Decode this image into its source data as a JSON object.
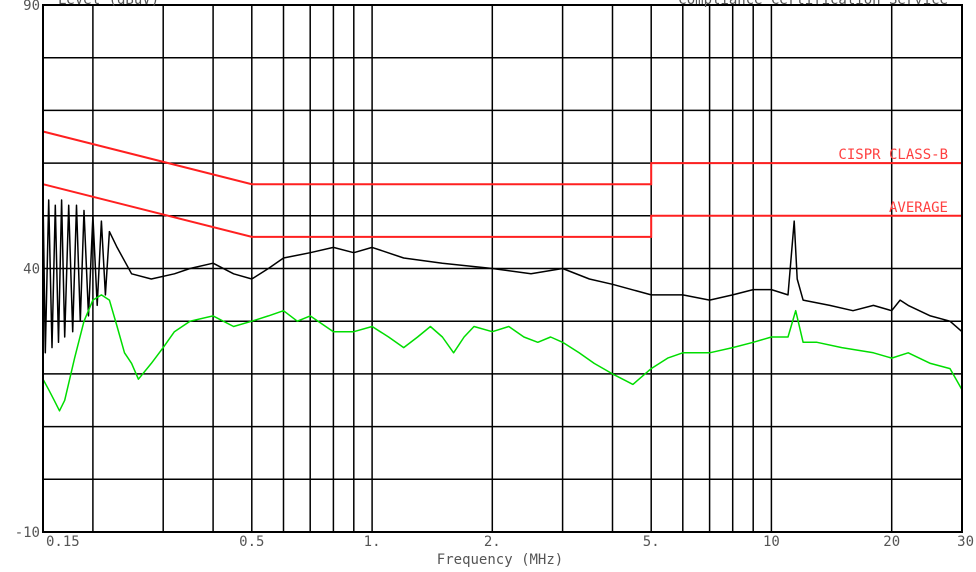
{
  "header": {
    "left_text": "Level (dBuV)",
    "right_text": "Compliance Certification Service"
  },
  "chart_data": {
    "type": "line",
    "title": "",
    "xlabel": "Frequency (MHz)",
    "ylabel": "Level (dBuV)",
    "x_scale": "log",
    "xlim": [
      0.15,
      30
    ],
    "ylim": [
      -10,
      90
    ],
    "grid": true,
    "x_ticks": [
      {
        "value": 0.15,
        "label": "0.15"
      },
      {
        "value": 0.5,
        "label": "0.5"
      },
      {
        "value": 1,
        "label": "1."
      },
      {
        "value": 2,
        "label": "2."
      },
      {
        "value": 5,
        "label": "5."
      },
      {
        "value": 10,
        "label": "10"
      },
      {
        "value": 20,
        "label": "20"
      },
      {
        "value": 30,
        "label": "30"
      }
    ],
    "y_ticks": [
      {
        "value": 90,
        "label": "90"
      },
      {
        "value": 40,
        "label": "40"
      },
      {
        "value": -10,
        "label": "-10"
      }
    ],
    "x_gridlines": [
      0.2,
      0.3,
      0.4,
      0.5,
      0.6,
      0.7,
      0.8,
      0.9,
      1,
      2,
      3,
      4,
      5,
      6,
      7,
      8,
      9,
      10,
      20
    ],
    "y_gridlines": [
      80,
      70,
      60,
      50,
      40,
      30,
      20,
      10,
      0
    ],
    "colors": {
      "limit": "#ff2020",
      "peak": "#000000",
      "average": "#00dd00",
      "grid": "#000000",
      "text": "#555555"
    },
    "limits": [
      {
        "name": "CISPR CLASS-B",
        "points": [
          [
            0.15,
            66
          ],
          [
            0.5,
            56
          ],
          [
            5,
            56
          ],
          [
            5,
            60
          ],
          [
            30,
            60
          ]
        ]
      },
      {
        "name": "AVERAGE",
        "points": [
          [
            0.15,
            56
          ],
          [
            0.5,
            46
          ],
          [
            5,
            46
          ],
          [
            5,
            50
          ],
          [
            30,
            50
          ]
        ]
      }
    ],
    "series": [
      {
        "points": [
          [
            0.15,
            54
          ],
          [
            0.152,
            24
          ],
          [
            0.155,
            53
          ],
          [
            0.158,
            25
          ],
          [
            0.161,
            52
          ],
          [
            0.164,
            26
          ],
          [
            0.167,
            53
          ],
          [
            0.17,
            27
          ],
          [
            0.174,
            52
          ],
          [
            0.178,
            28
          ],
          [
            0.182,
            52
          ],
          [
            0.186,
            30
          ],
          [
            0.19,
            51
          ],
          [
            0.195,
            31
          ],
          [
            0.2,
            50
          ],
          [
            0.205,
            33
          ],
          [
            0.21,
            49
          ],
          [
            0.215,
            35
          ],
          [
            0.22,
            47
          ],
          [
            0.23,
            44
          ],
          [
            0.25,
            39
          ],
          [
            0.28,
            38
          ],
          [
            0.32,
            39
          ],
          [
            0.35,
            40
          ],
          [
            0.4,
            41
          ],
          [
            0.45,
            39
          ],
          [
            0.5,
            38
          ],
          [
            0.55,
            40
          ],
          [
            0.6,
            42
          ],
          [
            0.7,
            43
          ],
          [
            0.8,
            44
          ],
          [
            0.9,
            43
          ],
          [
            1,
            44
          ],
          [
            1.2,
            42
          ],
          [
            1.5,
            41
          ],
          [
            2,
            40
          ],
          [
            2.5,
            39
          ],
          [
            3,
            40
          ],
          [
            3.5,
            38
          ],
          [
            4,
            37
          ],
          [
            5,
            35
          ],
          [
            6,
            35
          ],
          [
            7,
            34
          ],
          [
            8,
            35
          ],
          [
            9,
            36
          ],
          [
            10,
            36
          ],
          [
            11,
            35
          ],
          [
            11.4,
            49
          ],
          [
            11.6,
            38
          ],
          [
            12,
            34
          ],
          [
            14,
            33
          ],
          [
            16,
            32
          ],
          [
            18,
            33
          ],
          [
            20,
            32
          ],
          [
            21,
            34
          ],
          [
            22,
            33
          ],
          [
            25,
            31
          ],
          [
            28,
            30
          ],
          [
            30,
            28
          ]
        ]
      },
      {
        "points": [
          [
            0.15,
            19
          ],
          [
            0.155,
            17
          ],
          [
            0.16,
            15
          ],
          [
            0.165,
            13
          ],
          [
            0.17,
            15
          ],
          [
            0.18,
            23
          ],
          [
            0.19,
            30
          ],
          [
            0.2,
            34
          ],
          [
            0.21,
            35
          ],
          [
            0.22,
            34
          ],
          [
            0.23,
            29
          ],
          [
            0.24,
            24
          ],
          [
            0.25,
            22
          ],
          [
            0.26,
            19
          ],
          [
            0.28,
            22
          ],
          [
            0.3,
            25
          ],
          [
            0.32,
            28
          ],
          [
            0.35,
            30
          ],
          [
            0.4,
            31
          ],
          [
            0.45,
            29
          ],
          [
            0.5,
            30
          ],
          [
            0.55,
            31
          ],
          [
            0.6,
            32
          ],
          [
            0.65,
            30
          ],
          [
            0.7,
            31
          ],
          [
            0.8,
            28
          ],
          [
            0.9,
            28
          ],
          [
            1,
            29
          ],
          [
            1.1,
            27
          ],
          [
            1.2,
            25
          ],
          [
            1.3,
            27
          ],
          [
            1.4,
            29
          ],
          [
            1.5,
            27
          ],
          [
            1.6,
            24
          ],
          [
            1.7,
            27
          ],
          [
            1.8,
            29
          ],
          [
            2,
            28
          ],
          [
            2.2,
            29
          ],
          [
            2.4,
            27
          ],
          [
            2.6,
            26
          ],
          [
            2.8,
            27
          ],
          [
            3,
            26
          ],
          [
            3.3,
            24
          ],
          [
            3.6,
            22
          ],
          [
            4,
            20
          ],
          [
            4.5,
            18
          ],
          [
            5,
            21
          ],
          [
            5.5,
            23
          ],
          [
            6,
            24
          ],
          [
            7,
            24
          ],
          [
            8,
            25
          ],
          [
            9,
            26
          ],
          [
            10,
            27
          ],
          [
            11,
            27
          ],
          [
            11.5,
            32
          ],
          [
            12,
            26
          ],
          [
            13,
            26
          ],
          [
            15,
            25
          ],
          [
            18,
            24
          ],
          [
            20,
            23
          ],
          [
            22,
            24
          ],
          [
            25,
            22
          ],
          [
            28,
            21
          ],
          [
            30,
            17
          ]
        ]
      }
    ]
  }
}
